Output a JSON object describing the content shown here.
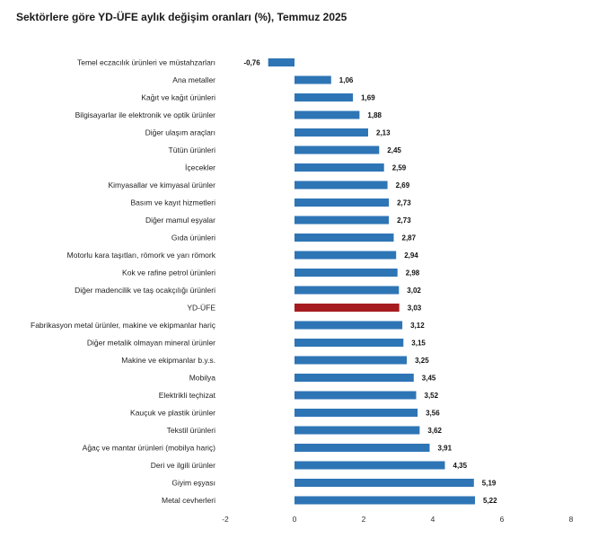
{
  "chart_data": {
    "type": "bar",
    "orientation": "horizontal",
    "title": "Sektörlere göre YD-ÜFE aylık değişim oranları (%), Temmuz 2025",
    "xlabel": "",
    "ylabel": "",
    "xlim": [
      -2,
      8
    ],
    "xticks": [
      -2,
      0,
      2,
      4,
      6,
      8
    ],
    "grid": false,
    "colors": {
      "default": "#2E75B6",
      "highlight": "#A61B1F"
    },
    "highlight_category": "YD-ÜFE",
    "categories": [
      "Temel eczacılık ürünleri ve müstahzarları",
      "Ana metaller",
      "Kağıt ve kağıt ürünleri",
      "Bilgisayarlar ile elektronik ve optik ürünler",
      "Diğer ulaşım araçları",
      "Tütün ürünleri",
      "İçecekler",
      "Kimyasallar ve kimyasal ürünler",
      "Basım ve kayıt hizmetleri",
      "Diğer mamul eşyalar",
      "Gıda ürünleri",
      "Motorlu kara taşıtları, römork ve yarı römork",
      "Kok ve rafine petrol ürünleri",
      "Diğer madencilik ve taş ocakçılığı ürünleri",
      "YD-ÜFE",
      "Fabrikasyon metal ürünler, makine ve ekipmanlar hariç",
      "Diğer metalik olmayan mineral ürünler",
      "Makine ve ekipmanlar b.y.s.",
      "Mobilya",
      "Elektrikli teçhizat",
      "Kauçuk ve plastik ürünler",
      "Tekstil ürünleri",
      "Ağaç ve mantar ürünleri (mobilya hariç)",
      "Deri ve ilgili ürünler",
      "Giyim eşyası",
      "Metal cevherleri"
    ],
    "values": [
      -0.76,
      1.06,
      1.69,
      1.88,
      2.13,
      2.45,
      2.59,
      2.69,
      2.73,
      2.73,
      2.87,
      2.94,
      2.98,
      3.02,
      3.03,
      3.12,
      3.15,
      3.25,
      3.45,
      3.52,
      3.56,
      3.62,
      3.91,
      4.35,
      5.19,
      5.22
    ],
    "value_labels": [
      "-0,76",
      "1,06",
      "1,69",
      "1,88",
      "2,13",
      "2,45",
      "2,59",
      "2,69",
      "2,73",
      "2,73",
      "2,87",
      "2,94",
      "2,98",
      "3,02",
      "3,03",
      "3,12",
      "3,15",
      "3,25",
      "3,45",
      "3,52",
      "3,56",
      "3,62",
      "3,91",
      "4,35",
      "5,19",
      "5,22"
    ]
  }
}
